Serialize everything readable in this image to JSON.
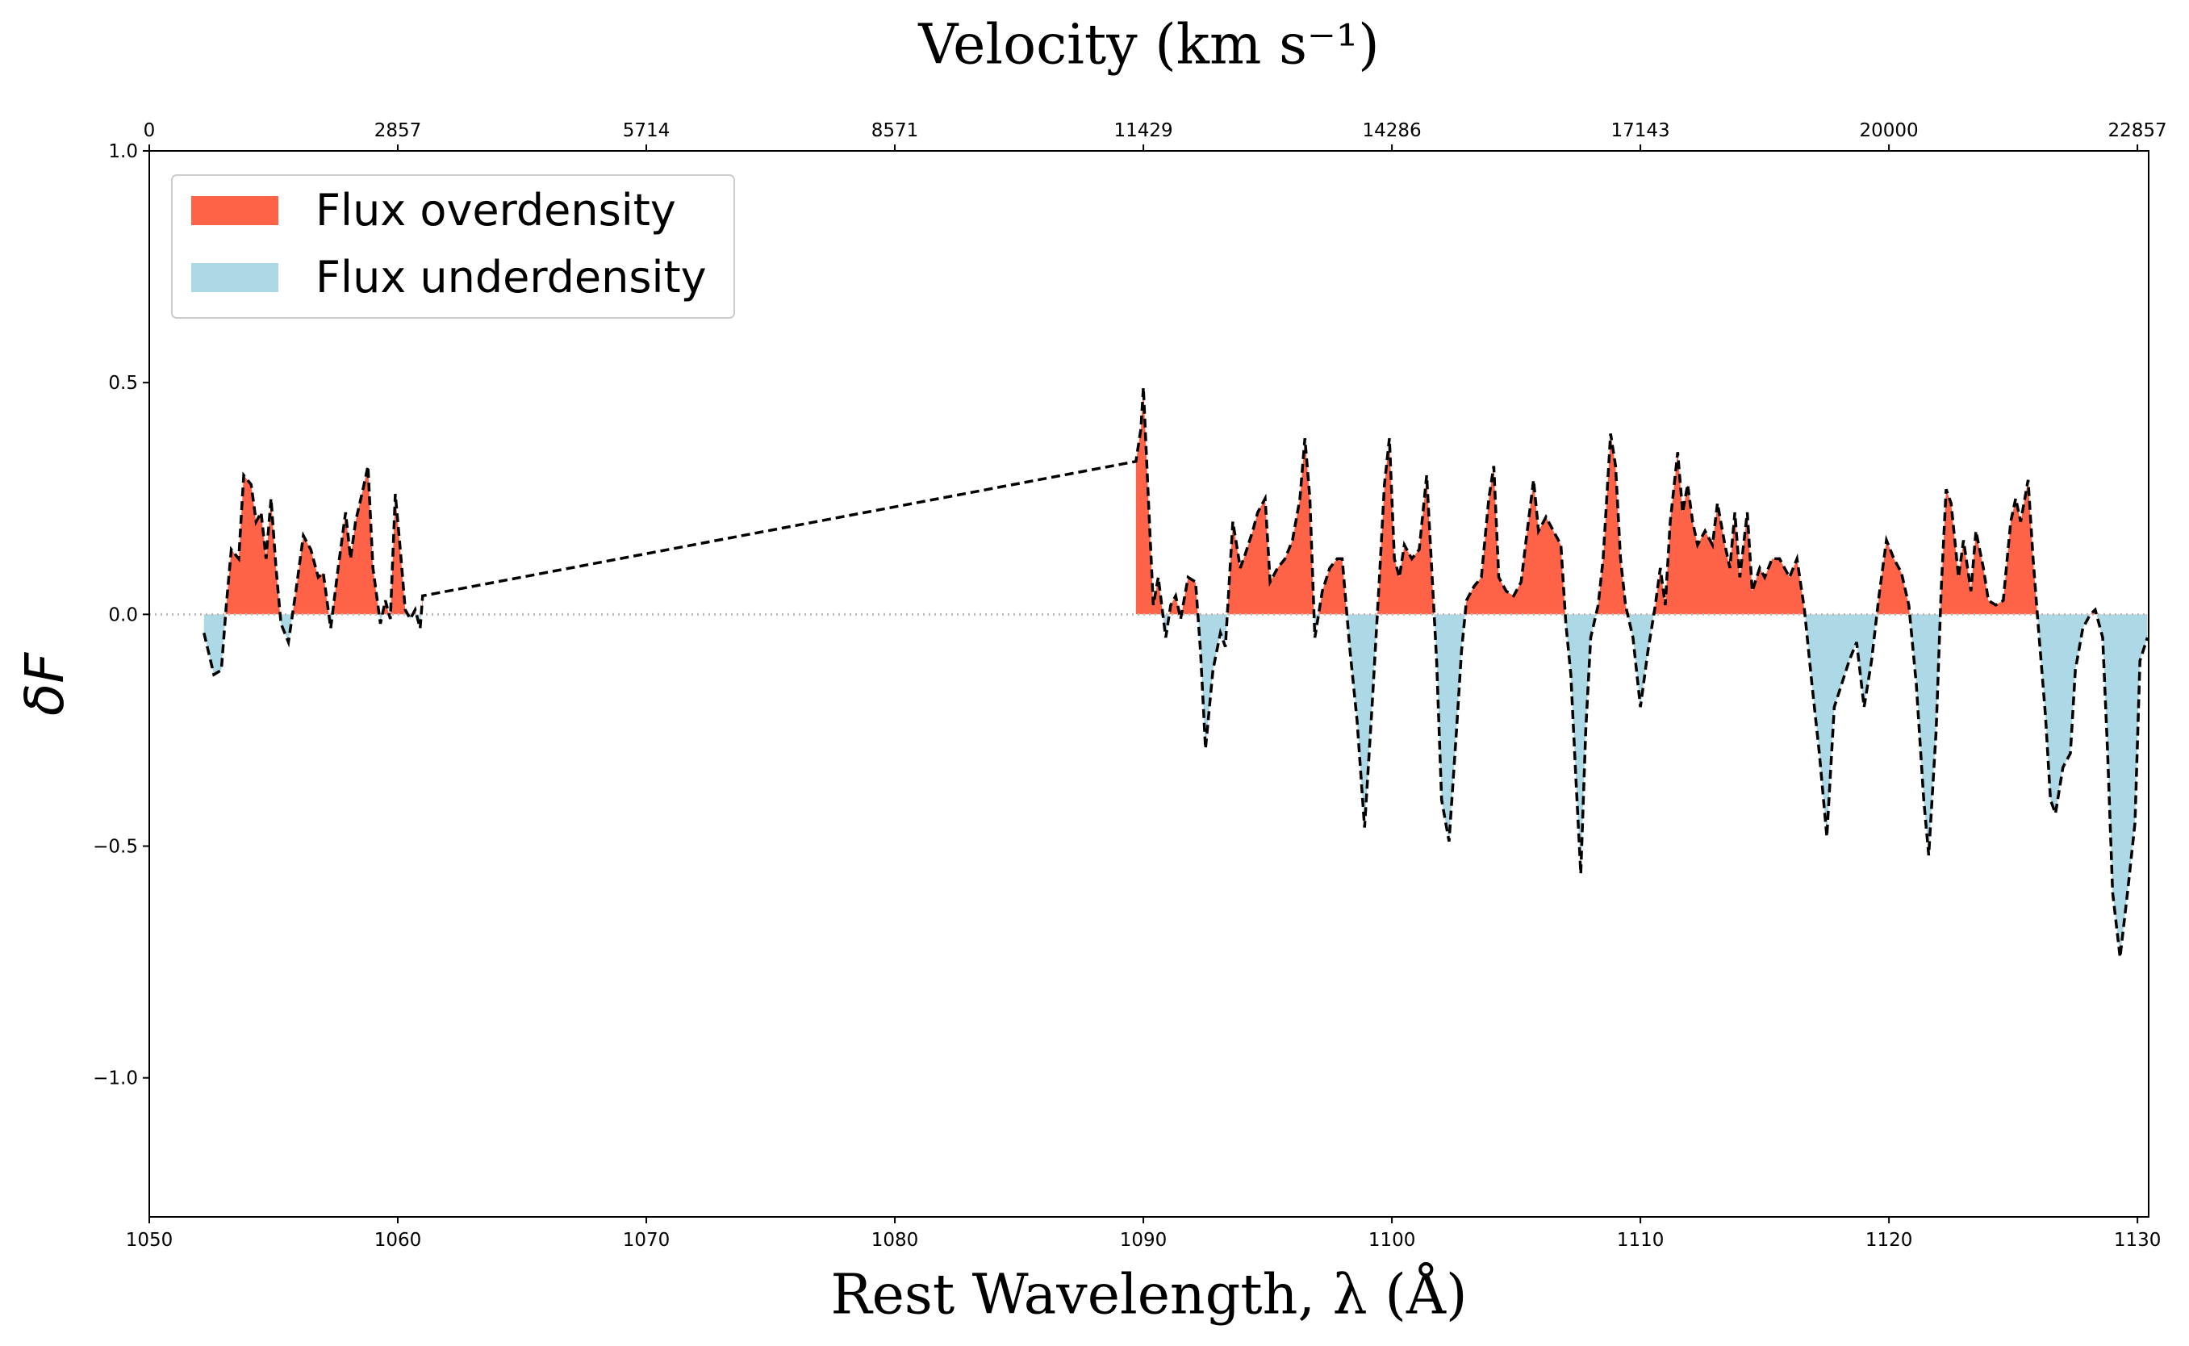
{
  "chart_data": {
    "type": "line",
    "title": "Velocity (km s⁻¹)",
    "xlabel": "Rest Wavelength, λ (Å)",
    "ylabel": "δF",
    "xlim": [
      1050,
      1130.45
    ],
    "ylim": [
      -1.3,
      1.0
    ],
    "xticks": [
      1050,
      1060,
      1070,
      1080,
      1090,
      1100,
      1110,
      1120,
      1130
    ],
    "yticks": [
      {
        "value": -1,
        "label": "−1.0"
      },
      {
        "value": -0.5,
        "label": "−0.5"
      },
      {
        "value": 0,
        "label": "0.0"
      },
      0.5,
      {
        "value": 1,
        "label": "1.0"
      }
    ],
    "x2lim": [
      0,
      22986
    ],
    "x2ticks": [
      0,
      2857,
      5714,
      8571,
      11429,
      14286,
      17143,
      20000,
      22857
    ],
    "line_color": "#000000",
    "fills": [
      {
        "name": "Flux overdensity",
        "color": "#ff6347",
        "side": "above"
      },
      {
        "name": "Flux underdensity",
        "color": "#add8e6",
        "side": "below"
      }
    ],
    "legend_position": "upper left",
    "x": [
      1052.2,
      1052.6,
      1052.9,
      1053.1,
      1053.3,
      1053.6,
      1053.8,
      1054.1,
      1054.3,
      1054.5,
      1054.7,
      1054.9,
      1055.1,
      1055.3,
      1055.6,
      1055.9,
      1056.2,
      1056.5,
      1056.8,
      1057.0,
      1057.3,
      1057.6,
      1057.9,
      1058.1,
      1058.3,
      1058.6,
      1058.8,
      1059.0,
      1059.3,
      1059.5,
      1059.7,
      1059.9,
      1060.1,
      1060.3,
      1060.5,
      1060.7,
      1060.9,
      1061.0,
      1089.7,
      1089.9,
      1090.0,
      1090.2,
      1090.4,
      1090.6,
      1090.9,
      1091.1,
      1091.3,
      1091.5,
      1091.8,
      1092.1,
      1092.3,
      1092.5,
      1092.8,
      1093.1,
      1093.3,
      1093.6,
      1093.9,
      1094.1,
      1094.4,
      1094.6,
      1094.9,
      1095.1,
      1095.4,
      1095.7,
      1096.0,
      1096.3,
      1096.5,
      1096.7,
      1096.9,
      1097.2,
      1097.5,
      1097.8,
      1098.0,
      1098.3,
      1098.6,
      1098.9,
      1099.2,
      1099.5,
      1099.7,
      1099.9,
      1100.1,
      1100.3,
      1100.5,
      1100.8,
      1101.1,
      1101.4,
      1101.6,
      1101.8,
      1102.0,
      1102.3,
      1102.6,
      1102.8,
      1103.0,
      1103.3,
      1103.6,
      1103.9,
      1104.1,
      1104.3,
      1104.6,
      1104.9,
      1105.2,
      1105.4,
      1105.7,
      1105.9,
      1106.2,
      1106.5,
      1106.8,
      1107.0,
      1107.2,
      1107.4,
      1107.6,
      1107.8,
      1108.0,
      1108.3,
      1108.5,
      1108.8,
      1109.0,
      1109.2,
      1109.4,
      1109.7,
      1110.0,
      1110.3,
      1110.6,
      1110.8,
      1111.0,
      1111.2,
      1111.5,
      1111.7,
      1111.9,
      1112.1,
      1112.3,
      1112.6,
      1112.9,
      1113.1,
      1113.4,
      1113.6,
      1113.8,
      1114.0,
      1114.3,
      1114.5,
      1114.8,
      1115.0,
      1115.3,
      1115.6,
      1115.8,
      1116.0,
      1116.3,
      1116.6,
      1116.9,
      1117.2,
      1117.5,
      1117.8,
      1118.1,
      1118.4,
      1118.7,
      1119.0,
      1119.3,
      1119.6,
      1119.9,
      1120.2,
      1120.5,
      1120.8,
      1121.1,
      1121.4,
      1121.6,
      1121.9,
      1122.1,
      1122.3,
      1122.5,
      1122.8,
      1123.0,
      1123.3,
      1123.5,
      1123.8,
      1124.0,
      1124.3,
      1124.6,
      1124.9,
      1125.1,
      1125.3,
      1125.6,
      1125.8,
      1126.0,
      1126.3,
      1126.5,
      1126.7,
      1127.0,
      1127.3,
      1127.5,
      1127.8,
      1128.1,
      1128.3,
      1128.6,
      1128.8,
      1129.0,
      1129.3,
      1129.6,
      1129.9,
      1130.1,
      1130.4
    ],
    "values": [
      -0.04,
      -0.13,
      -0.12,
      0.02,
      0.14,
      0.12,
      0.3,
      0.28,
      0.2,
      0.22,
      0.12,
      0.25,
      0.1,
      -0.02,
      -0.06,
      0.05,
      0.17,
      0.14,
      0.08,
      0.09,
      -0.03,
      0.1,
      0.22,
      0.12,
      0.2,
      0.27,
      0.32,
      0.1,
      -0.02,
      0.03,
      -0.01,
      0.26,
      0.14,
      0.01,
      -0.01,
      0.01,
      -0.03,
      0.04,
      0.33,
      0.4,
      0.49,
      0.25,
      0.02,
      0.08,
      -0.05,
      0.02,
      0.04,
      -0.01,
      0.08,
      0.07,
      -0.08,
      -0.29,
      -0.12,
      -0.04,
      -0.07,
      0.2,
      0.1,
      0.13,
      0.18,
      0.22,
      0.25,
      0.07,
      0.1,
      0.12,
      0.16,
      0.25,
      0.38,
      0.25,
      -0.05,
      0.05,
      0.1,
      0.12,
      0.12,
      -0.07,
      -0.23,
      -0.46,
      -0.2,
      0.08,
      0.28,
      0.38,
      0.12,
      0.08,
      0.15,
      0.12,
      0.14,
      0.3,
      0.1,
      -0.1,
      -0.4,
      -0.49,
      -0.25,
      -0.08,
      0.03,
      0.06,
      0.08,
      0.25,
      0.32,
      0.08,
      0.05,
      0.04,
      0.07,
      0.16,
      0.29,
      0.18,
      0.21,
      0.18,
      0.15,
      -0.02,
      -0.13,
      -0.35,
      -0.56,
      -0.25,
      -0.05,
      0.02,
      0.12,
      0.39,
      0.32,
      0.12,
      0.02,
      -0.05,
      -0.2,
      -0.08,
      0.02,
      0.1,
      0.02,
      0.2,
      0.35,
      0.22,
      0.28,
      0.2,
      0.15,
      0.18,
      0.15,
      0.24,
      0.15,
      0.1,
      0.22,
      0.08,
      0.22,
      0.05,
      0.1,
      0.08,
      0.12,
      0.12,
      0.1,
      0.08,
      0.12,
      0.01,
      -0.15,
      -0.3,
      -0.48,
      -0.2,
      -0.15,
      -0.1,
      -0.06,
      -0.2,
      -0.1,
      0.04,
      0.16,
      0.12,
      0.09,
      0.02,
      -0.15,
      -0.4,
      -0.52,
      -0.25,
      0.05,
      0.27,
      0.24,
      0.08,
      0.16,
      0.05,
      0.18,
      0.1,
      0.03,
      0.02,
      0.03,
      0.2,
      0.25,
      0.2,
      0.29,
      0.12,
      -0.02,
      -0.22,
      -0.4,
      -0.43,
      -0.33,
      -0.3,
      -0.12,
      -0.03,
      0.0,
      0.01,
      -0.05,
      -0.3,
      -0.6,
      -0.74,
      -0.6,
      -0.45,
      -0.1,
      -0.05
    ]
  }
}
